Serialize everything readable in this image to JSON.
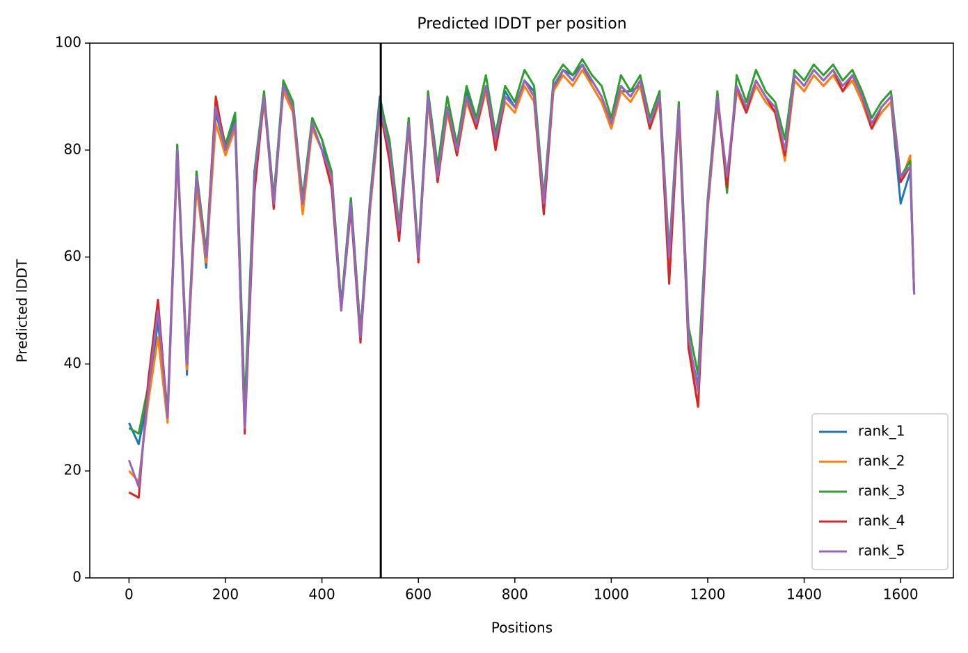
{
  "chart_data": {
    "type": "line",
    "title": "Predicted lDDT per position",
    "xlabel": "Positions",
    "ylabel": "Predicted lDDT",
    "x": [
      0,
      20,
      40,
      60,
      80,
      100,
      120,
      140,
      160,
      180,
      200,
      220,
      240,
      260,
      280,
      300,
      320,
      340,
      360,
      380,
      400,
      420,
      440,
      460,
      480,
      500,
      520,
      540,
      560,
      580,
      600,
      620,
      640,
      660,
      680,
      700,
      720,
      740,
      760,
      780,
      800,
      820,
      840,
      860,
      880,
      900,
      920,
      940,
      960,
      980,
      1000,
      1020,
      1040,
      1060,
      1080,
      1100,
      1120,
      1140,
      1160,
      1180,
      1200,
      1220,
      1240,
      1260,
      1280,
      1300,
      1320,
      1340,
      1360,
      1380,
      1400,
      1420,
      1440,
      1460,
      1480,
      1500,
      1520,
      1540,
      1560,
      1580,
      1600,
      1620,
      1628
    ],
    "series": [
      {
        "name": "rank_1",
        "color": "#1f77b4",
        "values": [
          29,
          25,
          34,
          48,
          30,
          81,
          38,
          76,
          58,
          87,
          80,
          86,
          29,
          74,
          90,
          71,
          93,
          87,
          71,
          86,
          82,
          74,
          51,
          71,
          46,
          71,
          90,
          81,
          64,
          86,
          60,
          89,
          76,
          87,
          81,
          91,
          86,
          91,
          83,
          91,
          88,
          93,
          91,
          71,
          91,
          95,
          94,
          96,
          92,
          89,
          84,
          91,
          91,
          92,
          84,
          91,
          58,
          87,
          44,
          36,
          69,
          89,
          74,
          91,
          87,
          92,
          89,
          87,
          79,
          93,
          91,
          94,
          92,
          94,
          91,
          93,
          89,
          84,
          87,
          89,
          70,
          76,
          53
        ]
      },
      {
        "name": "rank_2",
        "color": "#ff7f0e",
        "values": [
          20,
          18,
          33,
          45,
          29,
          79,
          39,
          73,
          59,
          85,
          79,
          84,
          29,
          74,
          89,
          71,
          91,
          87,
          68,
          84,
          80,
          74,
          50,
          70,
          45,
          69,
          87,
          79,
          64,
          84,
          60,
          89,
          74,
          87,
          79,
          89,
          84,
          91,
          81,
          89,
          87,
          92,
          89,
          68,
          91,
          94,
          92,
          95,
          92,
          89,
          84,
          91,
          89,
          92,
          84,
          89,
          58,
          86,
          44,
          32,
          69,
          89,
          75,
          91,
          87,
          92,
          89,
          87,
          78,
          93,
          91,
          94,
          92,
          94,
          91,
          93,
          89,
          84,
          87,
          89,
          74,
          79,
          53
        ]
      },
      {
        "name": "rank_3",
        "color": "#2ca02c",
        "values": [
          28,
          27,
          36,
          50,
          31,
          81,
          41,
          76,
          61,
          89,
          81,
          87,
          32,
          76,
          91,
          71,
          93,
          89,
          71,
          86,
          82,
          76,
          51,
          71,
          46,
          71,
          89,
          82,
          66,
          86,
          61,
          91,
          77,
          90,
          81,
          92,
          86,
          94,
          83,
          92,
          89,
          95,
          92,
          71,
          93,
          96,
          94,
          97,
          94,
          92,
          86,
          94,
          91,
          94,
          86,
          91,
          61,
          89,
          47,
          38,
          71,
          91,
          72,
          94,
          89,
          95,
          91,
          89,
          82,
          95,
          93,
          96,
          94,
          96,
          93,
          95,
          91,
          86,
          89,
          91,
          75,
          78,
          53
        ]
      },
      {
        "name": "rank_4",
        "color": "#d62728",
        "values": [
          16,
          15,
          37,
          52,
          30,
          80,
          40,
          75,
          60,
          90,
          80,
          85,
          27,
          72,
          90,
          69,
          92,
          88,
          70,
          85,
          80,
          73,
          50,
          69,
          44,
          70,
          88,
          78,
          63,
          85,
          59,
          90,
          74,
          88,
          79,
          90,
          84,
          92,
          80,
          90,
          88,
          93,
          90,
          68,
          92,
          95,
          93,
          96,
          93,
          90,
          85,
          92,
          90,
          93,
          84,
          90,
          55,
          88,
          43,
          32,
          70,
          90,
          73,
          92,
          87,
          93,
          90,
          87,
          79,
          94,
          92,
          95,
          93,
          95,
          91,
          94,
          90,
          84,
          88,
          90,
          74,
          77,
          53
        ]
      },
      {
        "name": "rank_5",
        "color": "#9467bd",
        "values": [
          22,
          17,
          35,
          50,
          30,
          80,
          40,
          75,
          60,
          88,
          80,
          85,
          28,
          75,
          90,
          70,
          92,
          88,
          70,
          85,
          80,
          75,
          50,
          70,
          45,
          70,
          88,
          80,
          65,
          85,
          60,
          90,
          75,
          88,
          80,
          90,
          85,
          92,
          82,
          90,
          88,
          93,
          90,
          70,
          92,
          95,
          93,
          96,
          93,
          90,
          85,
          92,
          90,
          93,
          85,
          90,
          60,
          88,
          45,
          35,
          70,
          90,
          75,
          92,
          88,
          93,
          90,
          88,
          80,
          94,
          92,
          95,
          93,
          95,
          92,
          94,
          90,
          85,
          88,
          90,
          75,
          77,
          53
        ]
      }
    ],
    "vline": 522,
    "vline_color": "#000000",
    "xlim": [
      -81.4,
      1709.4
    ],
    "xticks": [
      0,
      200,
      400,
      600,
      800,
      1000,
      1200,
      1400,
      1600
    ],
    "ylim": [
      0,
      100
    ],
    "yticks": [
      0,
      20,
      40,
      60,
      80,
      100
    ],
    "legend": "lower right",
    "grid": false
  }
}
